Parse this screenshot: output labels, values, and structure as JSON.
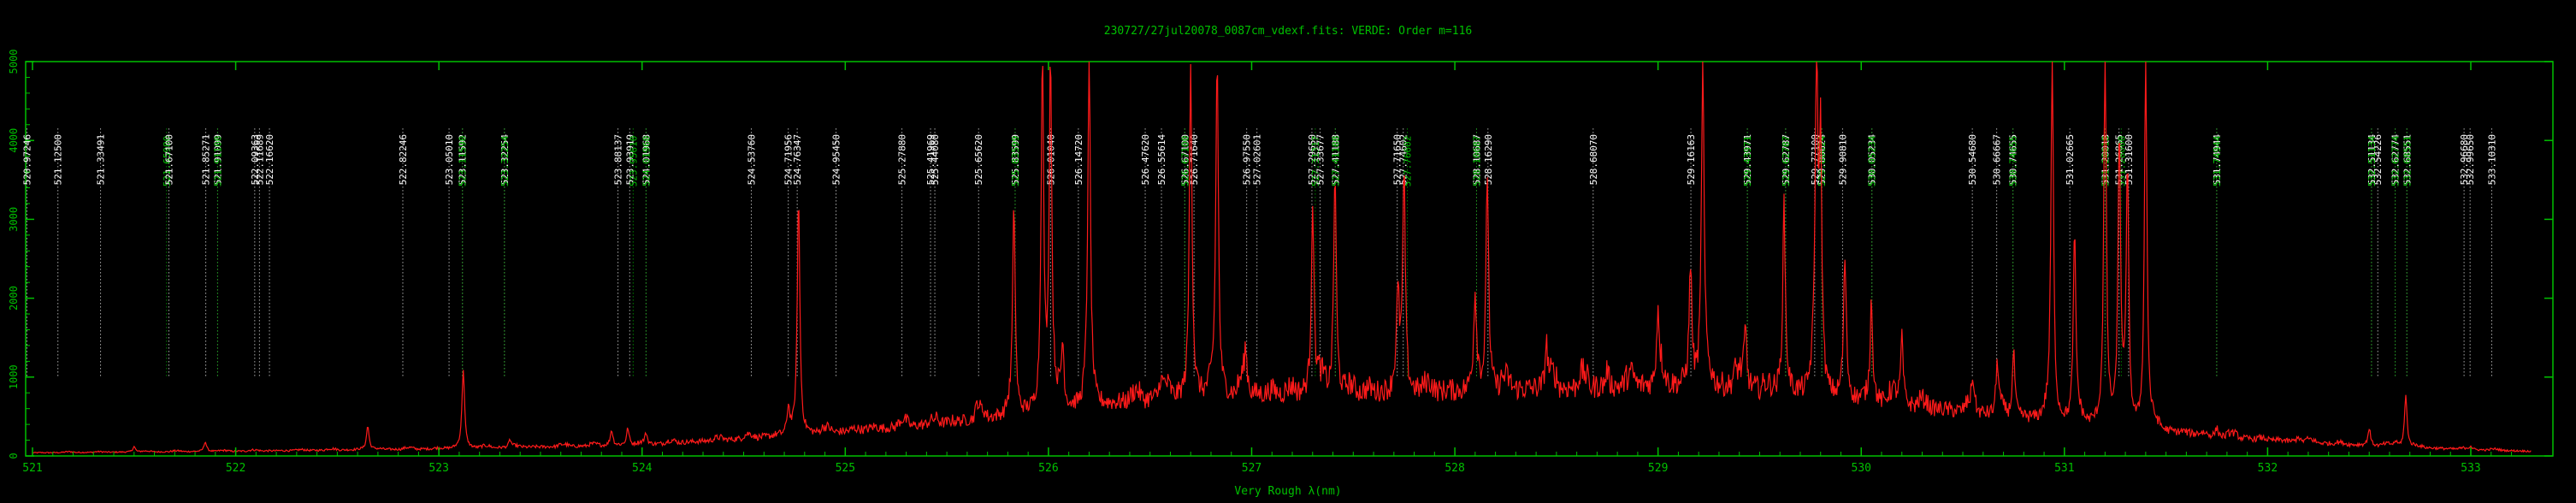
{
  "chart_data": {
    "type": "line",
    "title": "230727/27jul20078_0087cm_vdexf.fits: VERDE: Order m=116",
    "xlabel": "Very Rough λ(nm)",
    "ylabel": "",
    "xlim": [
      521.0,
      533.3
    ],
    "ylim": [
      0,
      5000
    ],
    "x_ticks": [
      "521",
      "522",
      "523",
      "524",
      "525",
      "526",
      "527",
      "528",
      "529",
      "530",
      "531",
      "532",
      "533"
    ],
    "y_ticks": [
      "0",
      "1000",
      "2000",
      "3000",
      "4000",
      "5000"
    ],
    "colors": {
      "axes": "#00c000",
      "spectrum": "#ff1a1a",
      "white_lines": "#ffffff",
      "green_lines": "#00c000"
    },
    "line_markers": [
      {
        "x": 520.97246,
        "label": "520.97246",
        "color": "white"
      },
      {
        "x": 521.125,
        "label": "521.12500",
        "color": "white"
      },
      {
        "x": 521.33491,
        "label": "521.33491",
        "color": "white"
      },
      {
        "x": 521.6598,
        "label": "521.65980",
        "color": "green"
      },
      {
        "x": 521.671,
        "label": "521.67100",
        "color": "white"
      },
      {
        "x": 521.85271,
        "label": "521.85271",
        "color": "white"
      },
      {
        "x": 521.91099,
        "label": "521.91099",
        "color": "white"
      },
      {
        "x": 521.911,
        "label": "521.91100",
        "color": "green"
      },
      {
        "x": 522.09363,
        "label": "522.09363",
        "color": "white"
      },
      {
        "x": 522.11689,
        "label": "522.11689",
        "color": "white"
      },
      {
        "x": 522.1662,
        "label": "522.16620",
        "color": "white"
      },
      {
        "x": 522.82246,
        "label": "522.82246",
        "color": "white"
      },
      {
        "x": 523.0501,
        "label": "523.05010",
        "color": "white"
      },
      {
        "x": 523.11592,
        "label": "523.11592",
        "color": "white"
      },
      {
        "x": 523.1159,
        "label": "523.11590",
        "color": "green"
      },
      {
        "x": 523.32254,
        "label": "523.32254",
        "color": "white"
      },
      {
        "x": 523.32254,
        "label": "523.32254",
        "color": "green"
      },
      {
        "x": 523.88137,
        "label": "523.88137",
        "color": "white"
      },
      {
        "x": 523.93919,
        "label": "523.93919",
        "color": "white"
      },
      {
        "x": 523.9561,
        "label": "523.95610",
        "color": "green"
      },
      {
        "x": 524.01968,
        "label": "524.01968",
        "color": "white"
      },
      {
        "x": 524.0196,
        "label": "524.01960",
        "color": "green"
      },
      {
        "x": 524.5376,
        "label": "524.53760",
        "color": "white"
      },
      {
        "x": 524.71956,
        "label": "524.71956",
        "color": "white"
      },
      {
        "x": 524.76347,
        "label": "524.76347",
        "color": "white"
      },
      {
        "x": 524.9545,
        "label": "524.95450",
        "color": "white"
      },
      {
        "x": 525.2788,
        "label": "525.27880",
        "color": "white"
      },
      {
        "x": 525.41969,
        "label": "525.41969",
        "color": "white"
      },
      {
        "x": 525.4408,
        "label": "525.44080",
        "color": "white"
      },
      {
        "x": 525.6562,
        "label": "525.65620",
        "color": "white"
      },
      {
        "x": 525.83599,
        "label": "525.83599",
        "color": "white"
      },
      {
        "x": 525.83599,
        "label": "525.83599",
        "color": "green"
      },
      {
        "x": 526.0104,
        "label": "526.01040",
        "color": "white"
      },
      {
        "x": 526.1472,
        "label": "526.14720",
        "color": "white"
      },
      {
        "x": 526.4762,
        "label": "526.47620",
        "color": "white"
      },
      {
        "x": 526.55614,
        "label": "526.55614",
        "color": "white"
      },
      {
        "x": 526.671,
        "label": "526.67100",
        "color": "white"
      },
      {
        "x": 526.671,
        "label": "526.67100",
        "color": "green"
      },
      {
        "x": 526.7164,
        "label": "526.71640",
        "color": "white"
      },
      {
        "x": 526.9755,
        "label": "526.97550",
        "color": "white"
      },
      {
        "x": 527.02601,
        "label": "527.02601",
        "color": "white"
      },
      {
        "x": 527.2965,
        "label": "527.29650",
        "color": "white"
      },
      {
        "x": 527.31317,
        "label": "527.31317",
        "color": "green"
      },
      {
        "x": 527.33677,
        "label": "527.33677",
        "color": "white"
      },
      {
        "x": 527.41188,
        "label": "527.41188",
        "color": "white"
      },
      {
        "x": 527.41188,
        "label": "527.41188",
        "color": "green"
      },
      {
        "x": 527.7165,
        "label": "527.71650",
        "color": "white"
      },
      {
        "x": 527.74602,
        "label": "527.74602",
        "color": "white"
      },
      {
        "x": 527.76602,
        "label": "527.76602",
        "color": "green"
      },
      {
        "x": 528.10687,
        "label": "528.10687",
        "color": "white"
      },
      {
        "x": 528.10687,
        "label": "528.10687",
        "color": "green"
      },
      {
        "x": 528.1629,
        "label": "528.16290",
        "color": "white"
      },
      {
        "x": 528.6807,
        "label": "528.68070",
        "color": "white"
      },
      {
        "x": 529.16163,
        "label": "529.16163",
        "color": "white"
      },
      {
        "x": 529.43971,
        "label": "529.43971",
        "color": "white"
      },
      {
        "x": 529.43971,
        "label": "529.43971",
        "color": "green"
      },
      {
        "x": 529.62787,
        "label": "529.62787",
        "color": "white"
      },
      {
        "x": 529.62787,
        "label": "529.62787",
        "color": "green"
      },
      {
        "x": 529.771,
        "label": "529.77100",
        "color": "white"
      },
      {
        "x": 529.80624,
        "label": "529.80624",
        "color": "white"
      },
      {
        "x": 529.80624,
        "label": "529.80624",
        "color": "green"
      },
      {
        "x": 529.9081,
        "label": "529.90810",
        "color": "white"
      },
      {
        "x": 530.05234,
        "label": "530.05234",
        "color": "white"
      },
      {
        "x": 530.05234,
        "label": "530.05234",
        "color": "green"
      },
      {
        "x": 530.5468,
        "label": "530.54680",
        "color": "white"
      },
      {
        "x": 530.66667,
        "label": "530.66667",
        "color": "white"
      },
      {
        "x": 530.74655,
        "label": "530.74655",
        "color": "white"
      },
      {
        "x": 530.74655,
        "label": "530.74655",
        "color": "green"
      },
      {
        "x": 531.02665,
        "label": "531.02665",
        "color": "white"
      },
      {
        "x": 531.20018,
        "label": "531.20018",
        "color": "white"
      },
      {
        "x": 531.20018,
        "label": "531.20018",
        "color": "green"
      },
      {
        "x": 531.26865,
        "label": "531.26865",
        "color": "white"
      },
      {
        "x": 531.28,
        "label": "531.28000",
        "color": "green"
      },
      {
        "x": 531.316,
        "label": "531.31600",
        "color": "white"
      },
      {
        "x": 531.74944,
        "label": "531.74944",
        "color": "white"
      },
      {
        "x": 531.74944,
        "label": "531.74944",
        "color": "green"
      },
      {
        "x": 532.51134,
        "label": "532.51134",
        "color": "white"
      },
      {
        "x": 532.54226,
        "label": "532.54226",
        "color": "white"
      },
      {
        "x": 532.51134,
        "label": "532.51134",
        "color": "green"
      },
      {
        "x": 532.62774,
        "label": "532.62774",
        "color": "white"
      },
      {
        "x": 532.62774,
        "label": "532.62774",
        "color": "green"
      },
      {
        "x": 532.68551,
        "label": "532.68551",
        "color": "white"
      },
      {
        "x": 532.68551,
        "label": "532.68551",
        "color": "green"
      },
      {
        "x": 532.9668,
        "label": "532.96680",
        "color": "white"
      },
      {
        "x": 532.9965,
        "label": "532.99650",
        "color": "white"
      },
      {
        "x": 533.1031,
        "label": "533.10310",
        "color": "white"
      }
    ],
    "spectrum": {
      "baseline": [
        [
          521.0,
          40
        ],
        [
          522.0,
          60
        ],
        [
          523.0,
          90
        ],
        [
          524.0,
          140
        ],
        [
          524.5,
          220
        ],
        [
          525.0,
          310
        ],
        [
          525.5,
          420
        ],
        [
          526.0,
          560
        ],
        [
          526.5,
          720
        ],
        [
          527.0,
          780
        ],
        [
          527.5,
          800
        ],
        [
          528.0,
          820
        ],
        [
          528.5,
          860
        ],
        [
          529.0,
          900
        ],
        [
          529.3,
          880
        ],
        [
          529.6,
          820
        ],
        [
          530.0,
          700
        ],
        [
          530.5,
          560
        ],
        [
          531.0,
          420
        ],
        [
          531.5,
          300
        ],
        [
          532.0,
          200
        ],
        [
          532.5,
          130
        ],
        [
          533.0,
          80
        ],
        [
          533.3,
          60
        ]
      ],
      "peaks": [
        {
          "x": 521.5,
          "y": 120
        },
        {
          "x": 521.85,
          "y": 180
        },
        {
          "x": 522.65,
          "y": 380
        },
        {
          "x": 523.12,
          "y": 1100
        },
        {
          "x": 523.35,
          "y": 200
        },
        {
          "x": 523.85,
          "y": 330
        },
        {
          "x": 523.93,
          "y": 350
        },
        {
          "x": 524.02,
          "y": 280
        },
        {
          "x": 524.77,
          "y": 3250
        },
        {
          "x": 524.72,
          "y": 600
        },
        {
          "x": 525.45,
          "y": 450
        },
        {
          "x": 525.65,
          "y": 600
        },
        {
          "x": 525.83,
          "y": 3100
        },
        {
          "x": 525.97,
          "y": 5000
        },
        {
          "x": 526.01,
          "y": 5000
        },
        {
          "x": 526.07,
          "y": 1300
        },
        {
          "x": 526.2,
          "y": 5000
        },
        {
          "x": 526.7,
          "y": 5000
        },
        {
          "x": 526.55,
          "y": 900
        },
        {
          "x": 526.83,
          "y": 5000
        },
        {
          "x": 526.97,
          "y": 1200
        },
        {
          "x": 527.3,
          "y": 3250
        },
        {
          "x": 527.41,
          "y": 3600
        },
        {
          "x": 527.75,
          "y": 3500
        },
        {
          "x": 527.72,
          "y": 1800
        },
        {
          "x": 528.1,
          "y": 1900
        },
        {
          "x": 528.16,
          "y": 3600
        },
        {
          "x": 528.45,
          "y": 1400
        },
        {
          "x": 528.75,
          "y": 1100
        },
        {
          "x": 529.0,
          "y": 1700
        },
        {
          "x": 529.22,
          "y": 5000
        },
        {
          "x": 529.16,
          "y": 2400
        },
        {
          "x": 529.43,
          "y": 1600
        },
        {
          "x": 529.62,
          "y": 3100
        },
        {
          "x": 529.78,
          "y": 5000
        },
        {
          "x": 529.8,
          "y": 3800
        },
        {
          "x": 529.92,
          "y": 2400
        },
        {
          "x": 530.05,
          "y": 2000
        },
        {
          "x": 530.2,
          "y": 1500
        },
        {
          "x": 530.55,
          "y": 900
        },
        {
          "x": 530.67,
          "y": 1100
        },
        {
          "x": 530.75,
          "y": 1300
        },
        {
          "x": 530.94,
          "y": 5000
        },
        {
          "x": 531.05,
          "y": 2700
        },
        {
          "x": 531.2,
          "y": 5000
        },
        {
          "x": 531.27,
          "y": 4000
        },
        {
          "x": 531.31,
          "y": 3500
        },
        {
          "x": 531.4,
          "y": 5000
        },
        {
          "x": 531.75,
          "y": 350
        },
        {
          "x": 532.15,
          "y": 250
        },
        {
          "x": 532.5,
          "y": 350
        },
        {
          "x": 532.63,
          "y": 180
        },
        {
          "x": 532.68,
          "y": 760
        },
        {
          "x": 533.0,
          "y": 120
        }
      ]
    }
  }
}
